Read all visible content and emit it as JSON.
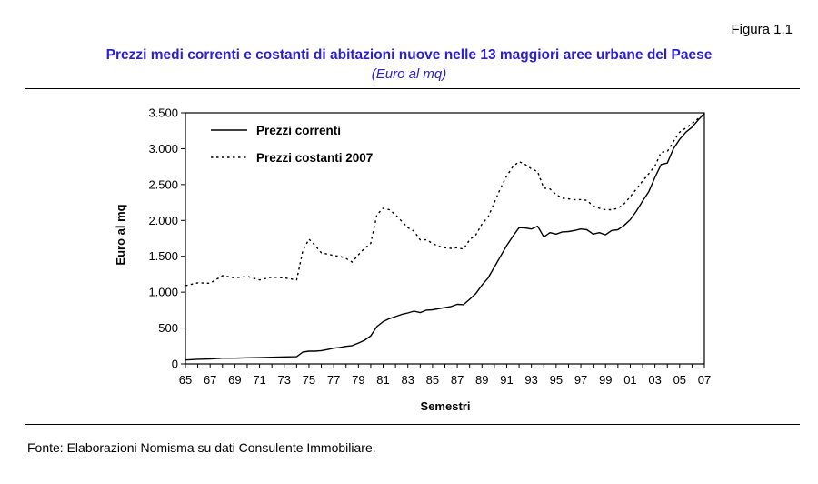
{
  "figure_label": "Figura 1.1",
  "title": "Prezzi medi correnti e costanti di abitazioni nuove nelle 13 maggiori aree urbane del Paese",
  "subtitle": "(Euro al mq)",
  "source": "Fonte: Elaborazioni Nomisma su dati Consulente Immobiliare.",
  "chart_data": {
    "type": "line",
    "xlabel": "Semestri",
    "ylabel": "Euro al mq",
    "ylim": [
      0,
      3500
    ],
    "yticks": [
      0,
      500,
      1000,
      1500,
      2000,
      2500,
      3000,
      3500
    ],
    "ytick_labels": [
      "0",
      "500",
      "1.000",
      "1.500",
      "2.000",
      "2.500",
      "3.000",
      "3.500"
    ],
    "x_tick_labels": [
      "65",
      "67",
      "69",
      "71",
      "73",
      "75",
      "77",
      "79",
      "81",
      "83",
      "85",
      "87",
      "89",
      "91",
      "93",
      "95",
      "97",
      "99",
      "01",
      "03",
      "05",
      "07"
    ],
    "legend_position": "top-left",
    "grid": false,
    "series": [
      {
        "name": "Prezzi correnti",
        "style": "solid",
        "points": [
          [
            1965,
            55
          ],
          [
            1966,
            65
          ],
          [
            1967,
            68
          ],
          [
            1968,
            80
          ],
          [
            1969,
            80
          ],
          [
            1970,
            85
          ],
          [
            1971,
            88
          ],
          [
            1972,
            92
          ],
          [
            1973,
            98
          ],
          [
            1974,
            100
          ],
          [
            1974.5,
            165
          ],
          [
            1975,
            178
          ],
          [
            1975.5,
            178
          ],
          [
            1976,
            185
          ],
          [
            1976.5,
            200
          ],
          [
            1977,
            220
          ],
          [
            1977.5,
            230
          ],
          [
            1978,
            245
          ],
          [
            1978.5,
            255
          ],
          [
            1979,
            290
          ],
          [
            1979.5,
            330
          ],
          [
            1980,
            390
          ],
          [
            1980.5,
            520
          ],
          [
            1981,
            590
          ],
          [
            1981.5,
            630
          ],
          [
            1982,
            660
          ],
          [
            1982.5,
            690
          ],
          [
            1983,
            710
          ],
          [
            1983.5,
            735
          ],
          [
            1984,
            715
          ],
          [
            1984.5,
            750
          ],
          [
            1985,
            755
          ],
          [
            1985.5,
            770
          ],
          [
            1986,
            785
          ],
          [
            1986.5,
            800
          ],
          [
            1987,
            830
          ],
          [
            1987.5,
            825
          ],
          [
            1988,
            900
          ],
          [
            1988.5,
            980
          ],
          [
            1989,
            1100
          ],
          [
            1989.5,
            1200
          ],
          [
            1990,
            1350
          ],
          [
            1990.5,
            1500
          ],
          [
            1991,
            1650
          ],
          [
            1991.5,
            1780
          ],
          [
            1992,
            1900
          ],
          [
            1992.5,
            1895
          ],
          [
            1993,
            1880
          ],
          [
            1993.5,
            1920
          ],
          [
            1994,
            1770
          ],
          [
            1994.5,
            1830
          ],
          [
            1995,
            1810
          ],
          [
            1995.5,
            1840
          ],
          [
            1996,
            1845
          ],
          [
            1996.5,
            1860
          ],
          [
            1997,
            1880
          ],
          [
            1997.5,
            1870
          ],
          [
            1998,
            1810
          ],
          [
            1998.5,
            1830
          ],
          [
            1999,
            1800
          ],
          [
            1999.5,
            1860
          ],
          [
            2000,
            1870
          ],
          [
            2000.5,
            1930
          ],
          [
            2001,
            2010
          ],
          [
            2001.5,
            2130
          ],
          [
            2002,
            2270
          ],
          [
            2002.5,
            2400
          ],
          [
            2003,
            2600
          ],
          [
            2003.5,
            2780
          ],
          [
            2004,
            2800
          ],
          [
            2004.5,
            3000
          ],
          [
            2005,
            3130
          ],
          [
            2005.5,
            3230
          ],
          [
            2006,
            3300
          ],
          [
            2006.5,
            3400
          ],
          [
            2007,
            3490
          ]
        ]
      },
      {
        "name": "Prezzi costanti 2007",
        "style": "dotted",
        "points": [
          [
            1965,
            1090
          ],
          [
            1966,
            1130
          ],
          [
            1967,
            1125
          ],
          [
            1968,
            1230
          ],
          [
            1969,
            1200
          ],
          [
            1970,
            1220
          ],
          [
            1971,
            1170
          ],
          [
            1972,
            1210
          ],
          [
            1973,
            1200
          ],
          [
            1974,
            1170
          ],
          [
            1974.5,
            1580
          ],
          [
            1975,
            1740
          ],
          [
            1975.5,
            1650
          ],
          [
            1976,
            1550
          ],
          [
            1976.5,
            1530
          ],
          [
            1977,
            1510
          ],
          [
            1977.5,
            1500
          ],
          [
            1978,
            1470
          ],
          [
            1978.5,
            1420
          ],
          [
            1979,
            1520
          ],
          [
            1979.5,
            1610
          ],
          [
            1980,
            1680
          ],
          [
            1980.5,
            2080
          ],
          [
            1981,
            2170
          ],
          [
            1981.5,
            2150
          ],
          [
            1982,
            2080
          ],
          [
            1982.5,
            1990
          ],
          [
            1983,
            1900
          ],
          [
            1983.5,
            1850
          ],
          [
            1984,
            1730
          ],
          [
            1984.5,
            1730
          ],
          [
            1985,
            1680
          ],
          [
            1985.5,
            1640
          ],
          [
            1986,
            1620
          ],
          [
            1986.5,
            1610
          ],
          [
            1987,
            1620
          ],
          [
            1987.5,
            1600
          ],
          [
            1988,
            1730
          ],
          [
            1988.5,
            1800
          ],
          [
            1989,
            1950
          ],
          [
            1989.5,
            2050
          ],
          [
            1990,
            2250
          ],
          [
            1990.5,
            2450
          ],
          [
            1991,
            2620
          ],
          [
            1991.5,
            2750
          ],
          [
            1992,
            2820
          ],
          [
            1992.5,
            2780
          ],
          [
            1993,
            2720
          ],
          [
            1993.5,
            2680
          ],
          [
            1994,
            2450
          ],
          [
            1994.5,
            2440
          ],
          [
            1995,
            2360
          ],
          [
            1995.5,
            2310
          ],
          [
            1996,
            2300
          ],
          [
            1996.5,
            2290
          ],
          [
            1997,
            2290
          ],
          [
            1997.5,
            2280
          ],
          [
            1998,
            2200
          ],
          [
            1998.5,
            2170
          ],
          [
            1999,
            2150
          ],
          [
            1999.5,
            2150
          ],
          [
            2000,
            2170
          ],
          [
            2000.5,
            2230
          ],
          [
            2001,
            2330
          ],
          [
            2001.5,
            2440
          ],
          [
            2002,
            2550
          ],
          [
            2002.5,
            2650
          ],
          [
            2003,
            2760
          ],
          [
            2003.5,
            2950
          ],
          [
            2004,
            2960
          ],
          [
            2004.5,
            3100
          ],
          [
            2005,
            3230
          ],
          [
            2005.5,
            3290
          ],
          [
            2006,
            3350
          ],
          [
            2006.5,
            3420
          ],
          [
            2007,
            3490
          ]
        ]
      }
    ],
    "colors": {
      "line": "#000000",
      "title": "#2a1fd6"
    }
  }
}
